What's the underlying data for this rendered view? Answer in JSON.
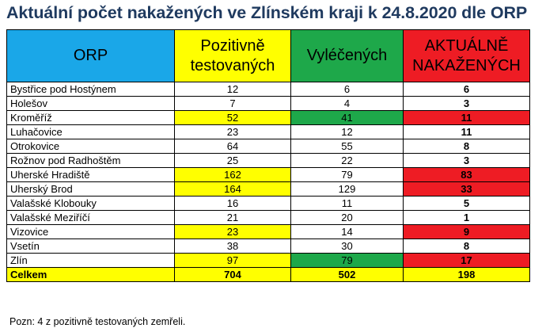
{
  "title": "Aktuální počet nakažených ve Zlínském kraji k 24.8.2020 dle ORP",
  "table": {
    "headers": {
      "orp": "ORP",
      "pozitivne_1": "Pozitivně",
      "pozitivne_2": "testovaných",
      "vylecenych": "Vyléčených",
      "aktualne_1": "AKTUÁLNĚ",
      "aktualne_2": "NAKAŽENÝCH"
    },
    "rows": [
      {
        "name": "Bystřice pod Hostýnem",
        "pos": "12",
        "vyl": "6",
        "akt": "6",
        "pos_hl": "",
        "vyl_hl": "",
        "akt_hl": ""
      },
      {
        "name": "Holešov",
        "pos": "7",
        "vyl": "4",
        "akt": "3",
        "pos_hl": "",
        "vyl_hl": "",
        "akt_hl": ""
      },
      {
        "name": "Kroměříž",
        "pos": "52",
        "vyl": "41",
        "akt": "11",
        "pos_hl": "y",
        "vyl_hl": "g",
        "akt_hl": "r"
      },
      {
        "name": "Luhačovice",
        "pos": "23",
        "vyl": "12",
        "akt": "11",
        "pos_hl": "",
        "vyl_hl": "",
        "akt_hl": ""
      },
      {
        "name": "Otrokovice",
        "pos": "64",
        "vyl": "55",
        "akt": "8",
        "pos_hl": "",
        "vyl_hl": "",
        "akt_hl": ""
      },
      {
        "name": "Rožnov pod Radhoštěm",
        "pos": "25",
        "vyl": "22",
        "akt": "3",
        "pos_hl": "",
        "vyl_hl": "",
        "akt_hl": ""
      },
      {
        "name": "Uherské Hradiště",
        "pos": "162",
        "vyl": "79",
        "akt": "83",
        "pos_hl": "y",
        "vyl_hl": "",
        "akt_hl": "r"
      },
      {
        "name": "Uherský Brod",
        "pos": "164",
        "vyl": "129",
        "akt": "33",
        "pos_hl": "y",
        "vyl_hl": "",
        "akt_hl": "r"
      },
      {
        "name": "Valašské Klobouky",
        "pos": "16",
        "vyl": "11",
        "akt": "5",
        "pos_hl": "",
        "vyl_hl": "",
        "akt_hl": ""
      },
      {
        "name": "Valašské Meziříčí",
        "pos": "21",
        "vyl": "20",
        "akt": "1",
        "pos_hl": "",
        "vyl_hl": "",
        "akt_hl": ""
      },
      {
        "name": "Vizovice",
        "pos": "23",
        "vyl": "14",
        "akt": "9",
        "pos_hl": "y",
        "vyl_hl": "",
        "akt_hl": "r"
      },
      {
        "name": "Vsetín",
        "pos": "38",
        "vyl": "30",
        "akt": "8",
        "pos_hl": "",
        "vyl_hl": "",
        "akt_hl": ""
      },
      {
        "name": "Zlín",
        "pos": "97",
        "vyl": "79",
        "akt": "17",
        "pos_hl": "y",
        "vyl_hl": "g",
        "akt_hl": "r"
      }
    ],
    "total": {
      "label": "Celkem",
      "pos": "704",
      "vyl": "502",
      "akt": "198"
    }
  },
  "note": "Pozn: 4 z pozitivně testovaných zemřeli.",
  "colors": {
    "orp_header": "#1aa7e8",
    "yellow": "#ffff00",
    "green": "#1ea84a",
    "red": "#ee1c24",
    "title": "#1f3a5f"
  }
}
